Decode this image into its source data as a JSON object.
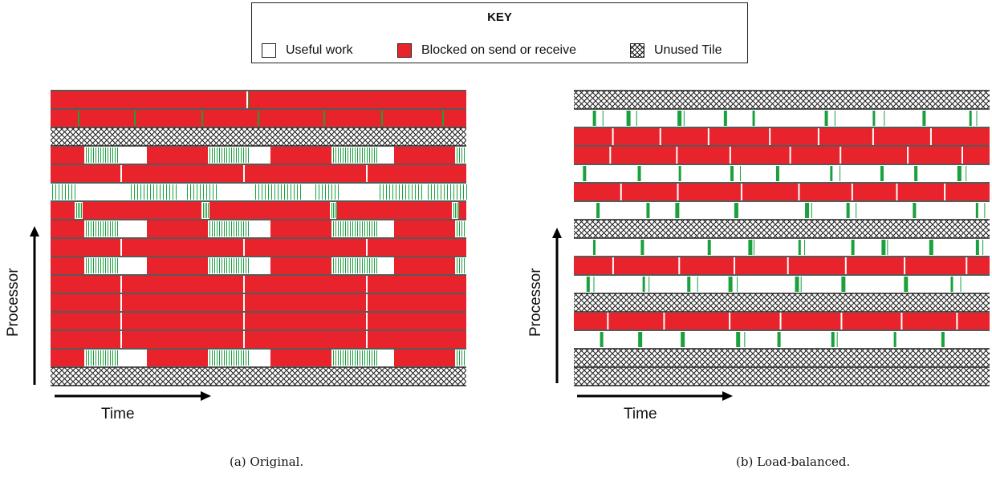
{
  "key": {
    "title": "KEY",
    "items": [
      {
        "label": "Useful work",
        "swatch": "white"
      },
      {
        "label": "Blocked on send or receive",
        "swatch": "red"
      },
      {
        "label": "Unused Tile",
        "swatch": "hatch"
      }
    ]
  },
  "colors": {
    "blocked_red": "#e8232b",
    "useful_white": "#ffffff",
    "communication_green": "#1aa13c",
    "row_border": "#222222"
  },
  "panels": [
    {
      "id": "original",
      "caption": "(a) Original.",
      "xlabel": "Time",
      "ylabel": "Processor",
      "rows": [
        {
          "type": "pattern",
          "pattern": "first",
          "shift": 0.0
        },
        {
          "type": "pattern",
          "pattern": "red-ticks",
          "shift": 0.0
        },
        {
          "type": "unused"
        },
        {
          "type": "pattern",
          "pattern": "alt-red-green",
          "shift": 0.0
        },
        {
          "type": "pattern",
          "pattern": "red-long",
          "shift": 0.0
        },
        {
          "type": "pattern",
          "pattern": "white-green",
          "shift": 0.0
        },
        {
          "type": "pattern",
          "pattern": "red-gaps",
          "shift": 0.0
        },
        {
          "type": "pattern",
          "pattern": "alt-red-green-b",
          "shift": 0.0
        },
        {
          "type": "pattern",
          "pattern": "red-long",
          "shift": 0.0
        },
        {
          "type": "pattern",
          "pattern": "alt-red-green-c",
          "shift": 0.0
        },
        {
          "type": "pattern",
          "pattern": "red-long",
          "shift": 0.0
        },
        {
          "type": "pattern",
          "pattern": "red-long",
          "shift": 0.0
        },
        {
          "type": "pattern",
          "pattern": "red-long",
          "shift": 0.0
        },
        {
          "type": "pattern",
          "pattern": "red-long",
          "shift": 0.0
        },
        {
          "type": "pattern",
          "pattern": "alt-red-green-c",
          "shift": 0.0
        },
        {
          "type": "unused"
        }
      ]
    },
    {
      "id": "load-balanced",
      "caption": "(b) Load-balanced.",
      "xlabel": "Time",
      "ylabel": "Processor",
      "rows": [
        {
          "type": "unused"
        },
        {
          "type": "pattern",
          "pattern": "lb-white",
          "seed": 1
        },
        {
          "type": "pattern",
          "pattern": "lb-red",
          "seed": 2
        },
        {
          "type": "pattern",
          "pattern": "lb-red",
          "seed": 3
        },
        {
          "type": "pattern",
          "pattern": "lb-white",
          "seed": 4
        },
        {
          "type": "pattern",
          "pattern": "lb-red",
          "seed": 5
        },
        {
          "type": "pattern",
          "pattern": "lb-white",
          "seed": 6
        },
        {
          "type": "unused"
        },
        {
          "type": "pattern",
          "pattern": "lb-white",
          "seed": 7
        },
        {
          "type": "pattern",
          "pattern": "lb-red",
          "seed": 8
        },
        {
          "type": "pattern",
          "pattern": "lb-white",
          "seed": 9
        },
        {
          "type": "unused"
        },
        {
          "type": "pattern",
          "pattern": "lb-red",
          "seed": 10
        },
        {
          "type": "pattern",
          "pattern": "lb-white",
          "seed": 11
        },
        {
          "type": "unused"
        },
        {
          "type": "unused"
        }
      ]
    }
  ]
}
